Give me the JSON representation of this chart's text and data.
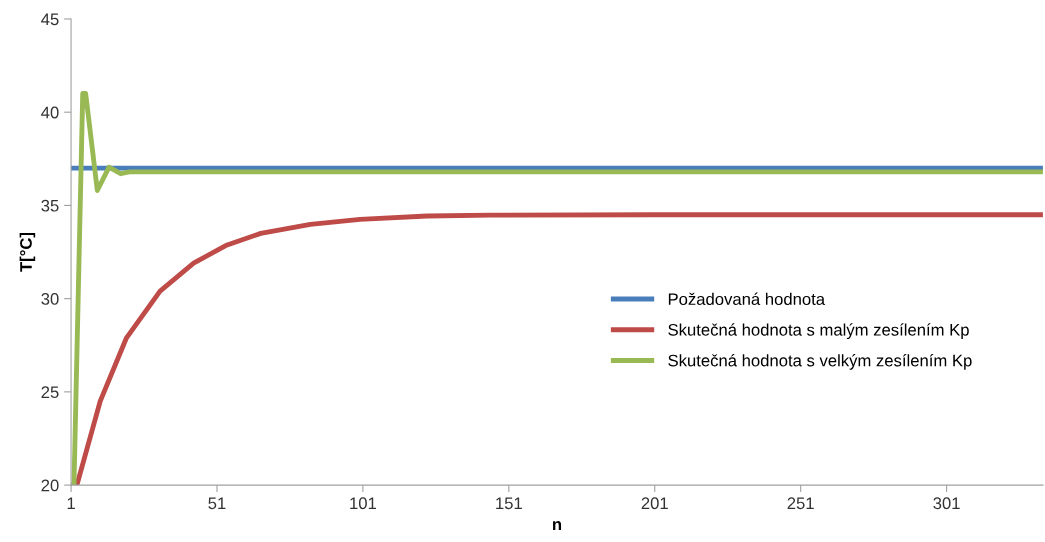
{
  "chart_data": {
    "type": "line",
    "xlabel": "n",
    "ylabel": "T[°C]",
    "xlim": [
      1,
      334
    ],
    "xticks": [
      1,
      51,
      101,
      151,
      201,
      251,
      301
    ],
    "ylim": [
      20,
      45
    ],
    "yticks": [
      20,
      25,
      30,
      35,
      40,
      45
    ],
    "grid": false,
    "legend": "right",
    "marker": "none",
    "line_style": "solid",
    "series": [
      {
        "name": "Požadovaná hodnota",
        "color": "#4a7ebb",
        "x": [
          1,
          334
        ],
        "values": [
          37,
          37
        ]
      },
      {
        "name": "Skutečná hodnota s malým zesílením Kp",
        "color": "#be4b48",
        "x": [
          1,
          3,
          11,
          20,
          31.5,
          43,
          54,
          66,
          83,
          100,
          123,
          145,
          200,
          334
        ],
        "values": [
          20,
          20,
          24.5,
          27.9,
          30.4,
          31.9,
          32.85,
          33.5,
          33.98,
          34.25,
          34.43,
          34.48,
          34.5,
          34.5
        ]
      },
      {
        "name": "Skutečná hodnota s velkým zesílením Kp",
        "color": "#98b954",
        "x": [
          1,
          2,
          5,
          6,
          10,
          14,
          18,
          21,
          25,
          334
        ],
        "values": [
          20,
          20,
          41,
          41,
          35.8,
          37.05,
          36.7,
          36.8,
          36.8,
          36.8
        ]
      }
    ]
  }
}
